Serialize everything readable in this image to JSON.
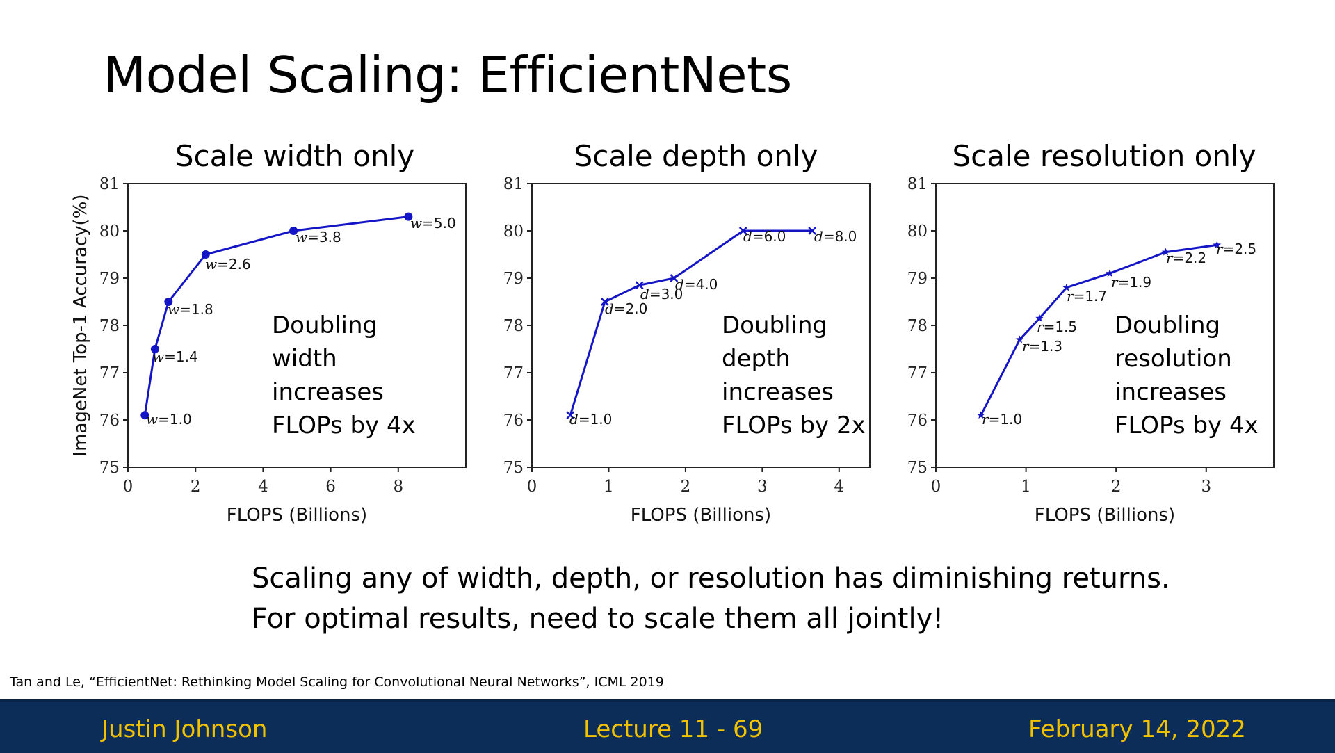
{
  "slide": {
    "title": "Model Scaling: EfficientNets",
    "conclusion_line1": "Scaling any of width, depth, or resolution has diminishing returns.",
    "conclusion_line2": "For optimal results, need to scale them all jointly!",
    "citation": "Tan and Le, “EfficientNet: Rethinking Model Scaling for Convolutional Neural Networks”, ICML 2019",
    "accent_color": "#f2c200",
    "footer_bg": "#0b2d57"
  },
  "footer": {
    "author": "Justin Johnson",
    "lecture": "Lecture 11 - 69",
    "date": "February 14, 2022"
  },
  "chart_data": [
    {
      "type": "line",
      "title": "Scale width only",
      "xlabel": "FLOPS (Billions)",
      "ylabel": "ImageNet Top-1 Accuracy(%)",
      "xlim": [
        0,
        10
      ],
      "ylim": [
        75,
        81
      ],
      "xticks": [
        0,
        2,
        4,
        6,
        8
      ],
      "yticks": [
        75,
        76,
        77,
        78,
        79,
        80,
        81
      ],
      "marker": "dot",
      "color": "#1515c8",
      "annotation": "Doubling\nwidth\nincreases\nFLOPs by 4x",
      "points": [
        {
          "x": 0.5,
          "y": 76.1,
          "var": "w",
          "val": "=1.0"
        },
        {
          "x": 0.8,
          "y": 77.5,
          "var": "w",
          "val": "=1.4"
        },
        {
          "x": 1.2,
          "y": 78.5,
          "var": "w",
          "val": "=1.8"
        },
        {
          "x": 2.3,
          "y": 79.5,
          "var": "w",
          "val": "=2.6"
        },
        {
          "x": 4.9,
          "y": 80.0,
          "var": "w",
          "val": "=3.8"
        },
        {
          "x": 8.3,
          "y": 80.3,
          "var": "w",
          "val": "=5.0"
        }
      ]
    },
    {
      "type": "line",
      "title": "Scale depth only",
      "xlabel": "FLOPS (Billions)",
      "ylabel": "",
      "xlim": [
        0,
        4.4
      ],
      "ylim": [
        75,
        81
      ],
      "xticks": [
        0,
        1,
        2,
        3,
        4
      ],
      "yticks": [
        75,
        76,
        77,
        78,
        79,
        80,
        81
      ],
      "marker": "x",
      "color": "#1515c8",
      "annotation": "Doubling\ndepth\nincreases\nFLOPs by 2x",
      "points": [
        {
          "x": 0.5,
          "y": 76.1,
          "var": "d",
          "val": "=1.0"
        },
        {
          "x": 0.95,
          "y": 78.5,
          "var": "d",
          "val": "=2.0"
        },
        {
          "x": 1.4,
          "y": 78.85,
          "var": "d",
          "val": "=3.0"
        },
        {
          "x": 1.85,
          "y": 79.0,
          "var": "d",
          "val": "=4.0"
        },
        {
          "x": 2.75,
          "y": 80.0,
          "var": "d",
          "val": "=6.0"
        },
        {
          "x": 3.65,
          "y": 80.0,
          "var": "d",
          "val": "=8.0"
        }
      ]
    },
    {
      "type": "line",
      "title": "Scale resolution only",
      "xlabel": "FLOPS (Billions)",
      "ylabel": "",
      "xlim": [
        0,
        3.75
      ],
      "ylim": [
        75,
        81
      ],
      "xticks": [
        0,
        1,
        2,
        3
      ],
      "yticks": [
        75,
        76,
        77,
        78,
        79,
        80,
        81
      ],
      "marker": "star",
      "color": "#1515c8",
      "annotation": "Doubling\nresolution\nincreases\nFLOPs by 4x",
      "points": [
        {
          "x": 0.5,
          "y": 76.1,
          "var": "r",
          "val": "=1.0"
        },
        {
          "x": 0.93,
          "y": 77.7,
          "var": "r",
          "val": "=1.3"
        },
        {
          "x": 1.15,
          "y": 78.15,
          "var": "r",
          "val": "=1.5"
        },
        {
          "x": 1.45,
          "y": 78.8,
          "var": "r",
          "val": "=1.7"
        },
        {
          "x": 1.93,
          "y": 79.1,
          "var": "r",
          "val": "=1.9"
        },
        {
          "x": 2.55,
          "y": 79.55,
          "var": "r",
          "val": "=2.2"
        },
        {
          "x": 3.12,
          "y": 79.7,
          "var": "r",
          "val": "=2.5"
        }
      ]
    }
  ]
}
